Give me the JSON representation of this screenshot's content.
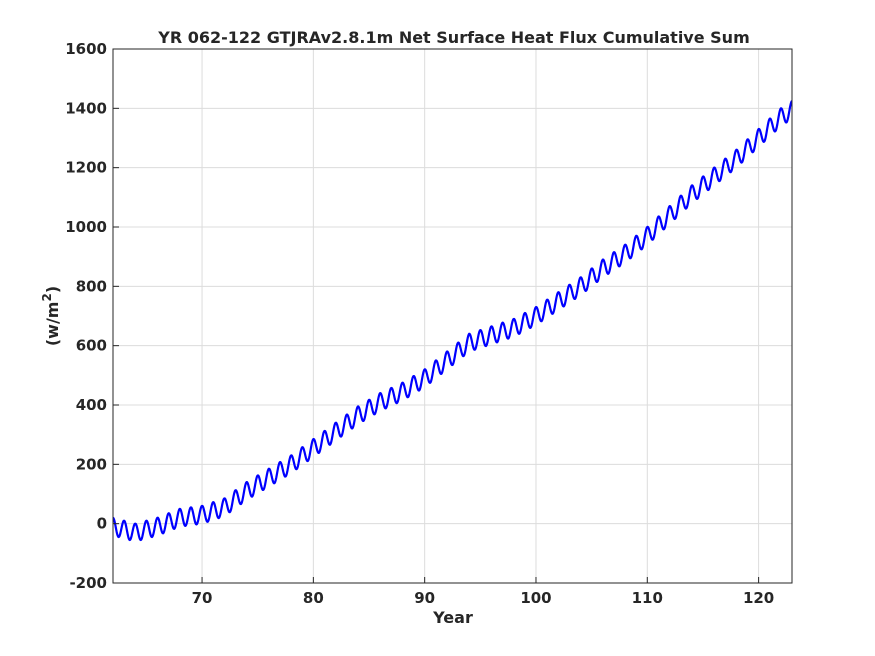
{
  "chart_data": {
    "type": "line",
    "title": "YR 062-122 GTJRAv2.8.1m Net Surface Heat Flux  Cumulative Sum",
    "xlabel": "Year",
    "ylabel": "(w/m",
    "ylabel_superscript": "2",
    "ylabel_close": ")",
    "xlim": [
      62,
      123
    ],
    "ylim": [
      -200,
      1600
    ],
    "xticks": [
      70,
      80,
      90,
      100,
      110,
      120
    ],
    "yticks": [
      -200,
      0,
      200,
      400,
      600,
      800,
      1000,
      1200,
      1400,
      1600
    ],
    "grid": true,
    "color": "#0000ff",
    "trend_x": [
      62,
      64,
      66,
      68,
      70,
      72,
      74,
      76,
      78,
      80,
      82,
      84,
      86,
      88,
      90,
      92,
      94,
      96,
      98,
      100,
      102,
      104,
      106,
      108,
      110,
      112,
      114,
      116,
      118,
      120,
      122,
      123
    ],
    "trend_y": [
      -10,
      -30,
      -10,
      20,
      30,
      55,
      110,
      155,
      200,
      255,
      310,
      365,
      410,
      445,
      490,
      550,
      610,
      635,
      660,
      700,
      750,
      800,
      860,
      910,
      970,
      1040,
      1110,
      1170,
      1230,
      1300,
      1370,
      1395
    ],
    "seasonal_amplitude": 30,
    "period_years": 1
  }
}
